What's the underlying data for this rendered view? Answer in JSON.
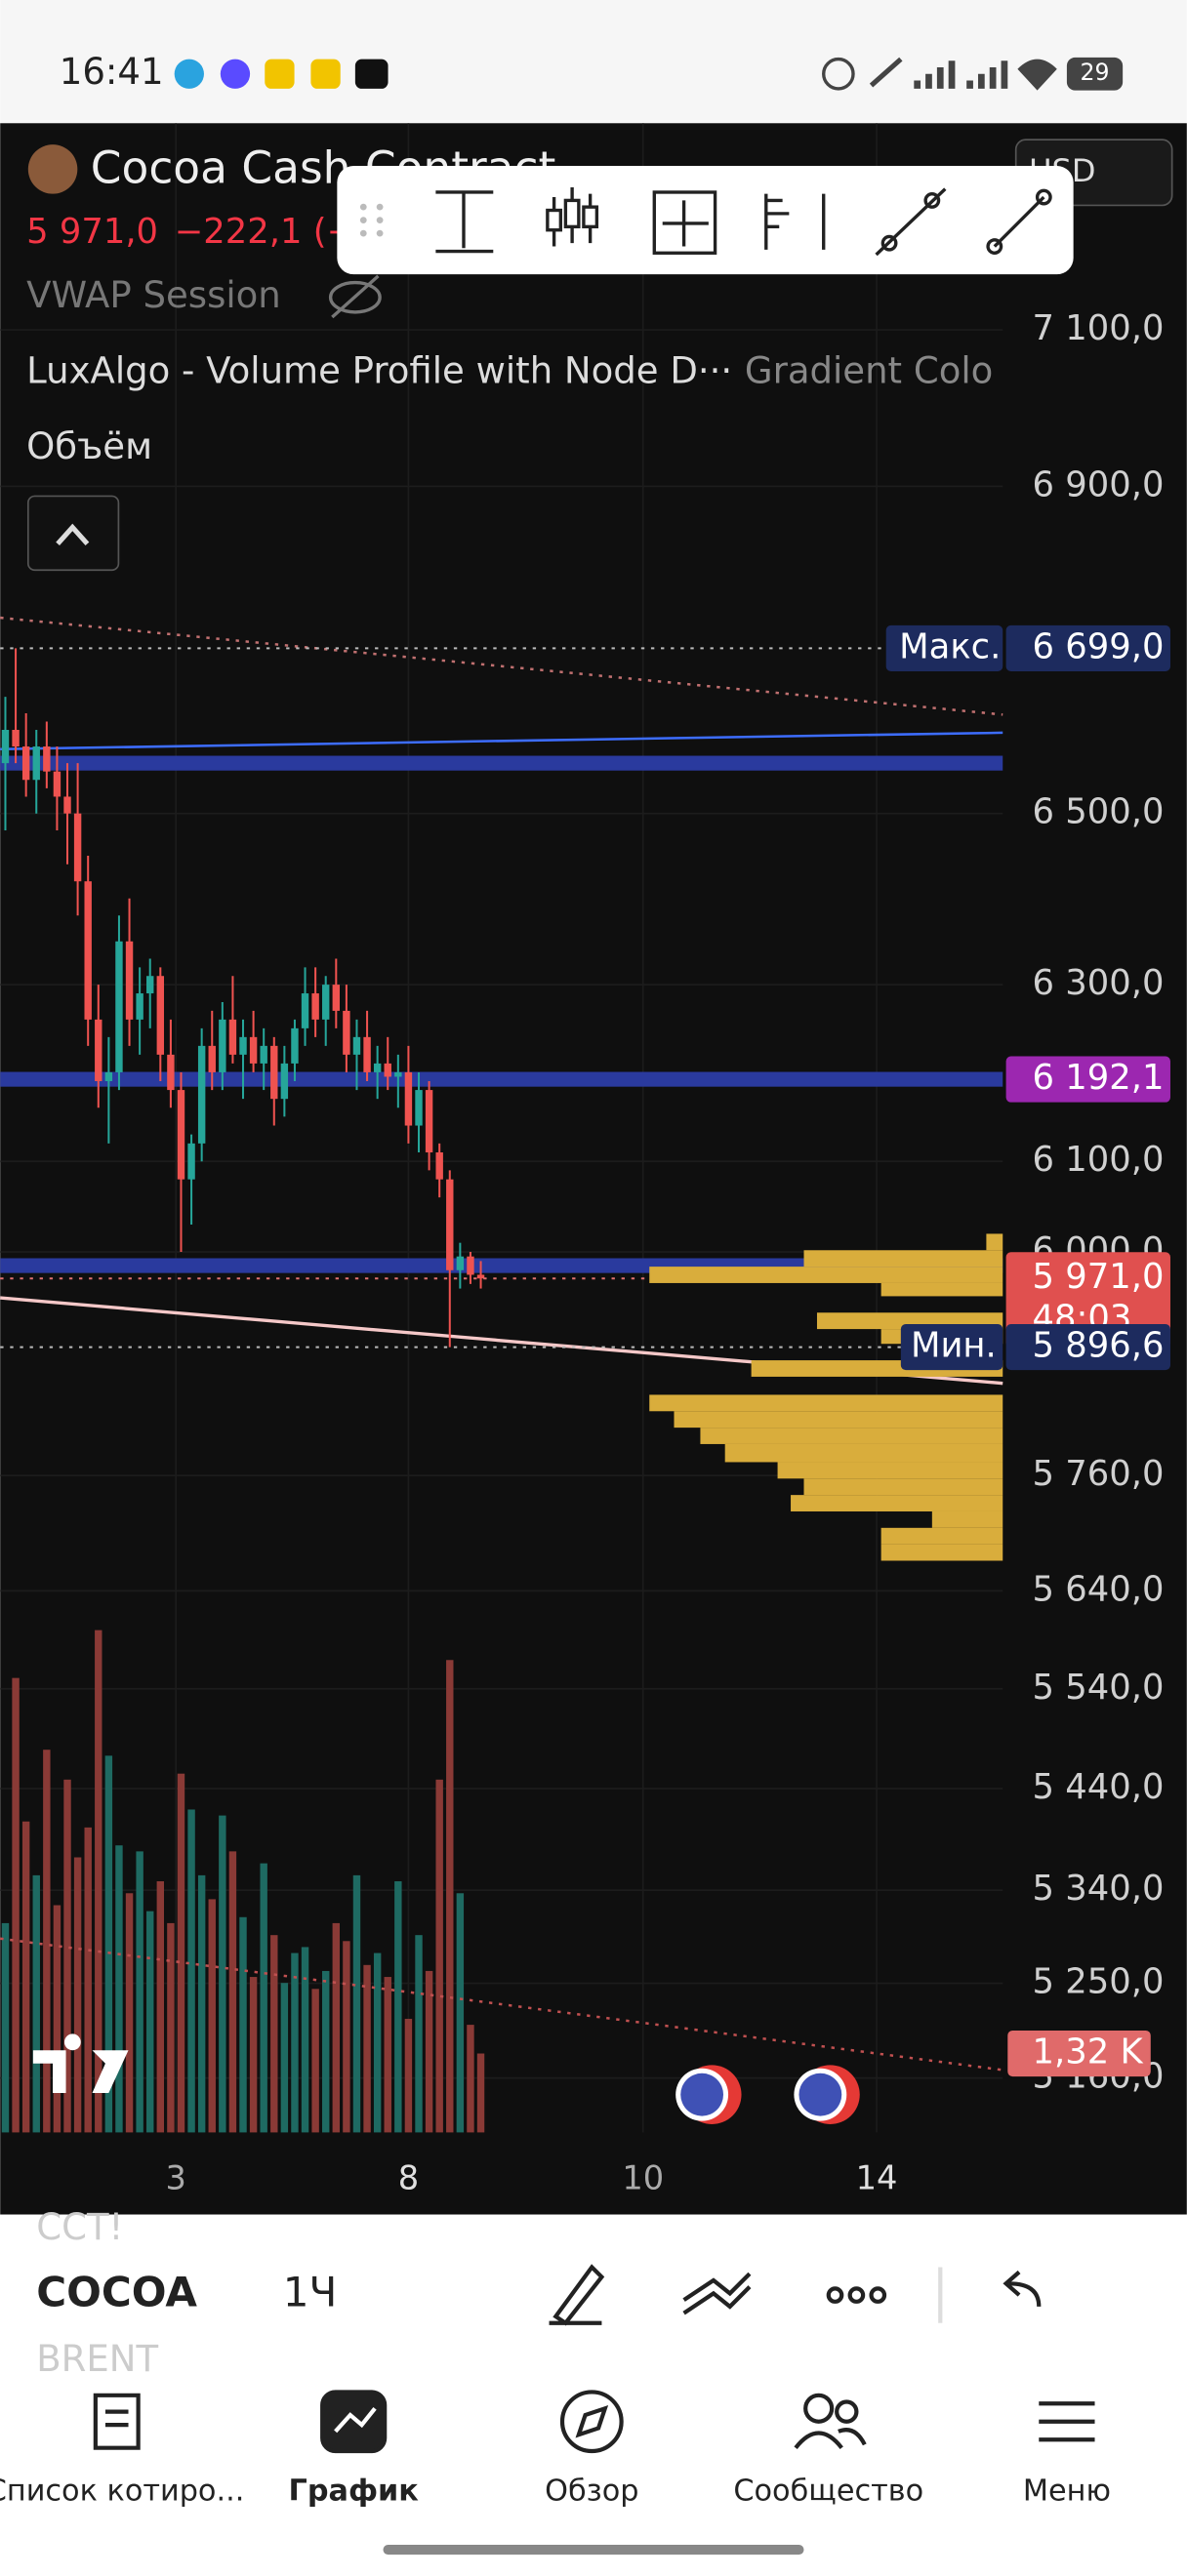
{
  "status_bar": {
    "time": "16:41",
    "battery": "29"
  },
  "header": {
    "symbol": "Cocoa Cash Contract",
    "quote": "5 971,0",
    "change": "−222,1 (−",
    "currency": "USD"
  },
  "indicators": [
    "VWAP Session",
    "LuxAlgo - Volume Profile with Node D···",
    "Gradient Colo",
    "Объём"
  ],
  "chart_data": {
    "type": "candlestick",
    "log_scale": true,
    "ylim": [
      5109,
      7373
    ],
    "yticks": [
      {
        "value": 7100,
        "label": "7 100,0"
      },
      {
        "value": 6900,
        "label": "6 900,0"
      },
      {
        "value": 6500,
        "label": "6 500,0"
      },
      {
        "value": 6300,
        "label": "6 300,0"
      },
      {
        "value": 6100,
        "label": "6 100,0"
      },
      {
        "value": 6000,
        "label": "6 000,0"
      },
      {
        "value": 5760,
        "label": "5 760,0"
      },
      {
        "value": 5640,
        "label": "5 640,0"
      },
      {
        "value": 5540,
        "label": "5 540,0"
      },
      {
        "value": 5440,
        "label": "5 440,0"
      },
      {
        "value": 5340,
        "label": "5 340,0"
      },
      {
        "value": 5250,
        "label": "5 250,0"
      },
      {
        "value": 5160,
        "label": "5 160,0"
      }
    ],
    "xlim": [
      0,
      97
    ],
    "xticks": [
      {
        "value": 17,
        "label": "3"
      },
      {
        "value": 39.5,
        "label": "8"
      },
      {
        "value": 62.2,
        "label": "10"
      },
      {
        "value": 84.8,
        "label": "14"
      }
    ],
    "grid": true,
    "up_color": "#26a69a",
    "down_color": "#ef5350",
    "open": [
      6560,
      6600,
      6580,
      6540,
      6580,
      6550,
      6520,
      6500,
      6420,
      6260,
      6190,
      6200,
      6350,
      6260,
      6290,
      6310,
      6220,
      6180,
      6080,
      6120,
      6230,
      6200,
      6260,
      6220,
      6240,
      6210,
      6230,
      6170,
      6210,
      6250,
      6290,
      6260,
      6300,
      6270,
      6220,
      6240,
      6200,
      6210,
      6195,
      6200,
      6140,
      6180,
      6110,
      6080,
      5980,
      5995,
      5975
    ],
    "high": [
      6640,
      6699,
      6620,
      6600,
      6610,
      6580,
      6560,
      6560,
      6450,
      6300,
      6240,
      6380,
      6400,
      6320,
      6330,
      6320,
      6260,
      6200,
      6130,
      6250,
      6270,
      6280,
      6310,
      6260,
      6270,
      6250,
      6240,
      6230,
      6260,
      6320,
      6320,
      6310,
      6330,
      6300,
      6260,
      6270,
      6230,
      6240,
      6220,
      6230,
      6200,
      6190,
      6120,
      6090,
      6010,
      6000,
      5990
    ],
    "low": [
      6480,
      6560,
      6520,
      6500,
      6530,
      6480,
      6440,
      6380,
      6230,
      6160,
      6120,
      6180,
      6230,
      6220,
      6250,
      6190,
      6160,
      6000,
      6030,
      6100,
      6180,
      6180,
      6210,
      6170,
      6200,
      6180,
      6140,
      6150,
      6190,
      6230,
      6240,
      6230,
      6250,
      6200,
      6180,
      6190,
      6170,
      6180,
      6160,
      6120,
      6110,
      6090,
      6060,
      5896.6,
      5960,
      5965,
      5960
    ],
    "close": [
      6600,
      6580,
      6540,
      6580,
      6550,
      6520,
      6500,
      6420,
      6260,
      6190,
      6200,
      6350,
      6260,
      6290,
      6310,
      6220,
      6180,
      6080,
      6120,
      6230,
      6200,
      6260,
      6220,
      6240,
      6210,
      6230,
      6170,
      6210,
      6250,
      6290,
      6260,
      6300,
      6270,
      6220,
      6240,
      6200,
      6210,
      6195,
      6200,
      6140,
      6180,
      6110,
      6080,
      5980,
      5995,
      5975,
      5971
    ],
    "levels": [
      6560,
      6192.1,
      5985
    ],
    "level_color": "#2a3a9e",
    "max": {
      "label": "Макс.",
      "value": 6699,
      "value_label": "6 699,0"
    },
    "min": {
      "label": "Мин.",
      "value": 5896.6,
      "value_label": "5 896,6"
    },
    "poc": {
      "value": 6192.1,
      "value_label": "6 192,1",
      "color": "#9c27b0"
    },
    "last": {
      "value": 5971,
      "value_label": "5 971,0",
      "countdown": "48:03",
      "color": "#e0504f"
    },
    "volume": {
      "values": [
        3500,
        7600,
        5200,
        4300,
        6400,
        3800,
        5900,
        4600,
        5100,
        8400,
        6300,
        4800,
        4000,
        4700,
        3700,
        4200,
        3500,
        6000,
        5400,
        4300,
        3900,
        5300,
        4700,
        3600,
        2600,
        4500,
        3300,
        2500,
        3000,
        3100,
        2400,
        2700,
        3500,
        3200,
        4300,
        2800,
        3000,
        2600,
        4200,
        1900,
        3300,
        2700,
        5900,
        7900,
        4000,
        1800,
        1320
      ],
      "ylim": [
        0,
        33600
      ],
      "up_color": "#1e6a62",
      "down_color": "#8a3a36",
      "last": {
        "value": 1320,
        "label": "1,32 K"
      }
    }
  },
  "toolbar": {
    "prev_symbol": "CCT!",
    "symbol": "COCOA",
    "interval": "1Ч",
    "next_symbol": "BRENT"
  },
  "nav": [
    "Список котиро...",
    "График",
    "Обзор",
    "Сообщество",
    "Меню"
  ]
}
